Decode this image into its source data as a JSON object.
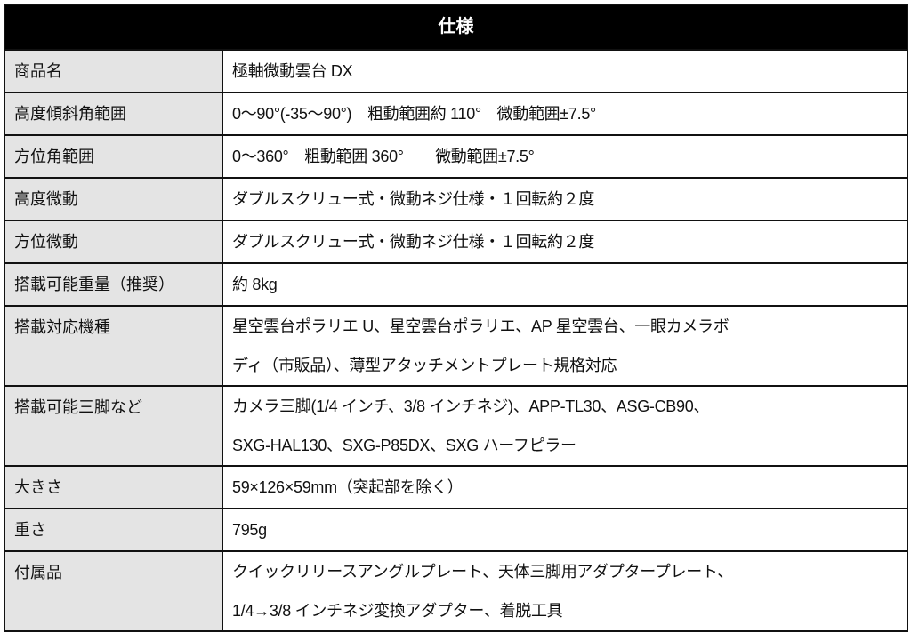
{
  "title": "仕様",
  "colors": {
    "header_bg": "#000000",
    "header_text": "#ffffff",
    "label_bg": "#e4e4e4"
  },
  "rows": [
    {
      "label": "商品名",
      "value": [
        "極軸微動雲台 DX"
      ]
    },
    {
      "label": "高度傾斜角範囲",
      "value": [
        "0～90°(-35～90°)　粗動範囲約 110°　微動範囲±7.5°"
      ]
    },
    {
      "label": "方位角範囲",
      "value": [
        "0～360°　粗動範囲 360°　　微動範囲±7.5°"
      ]
    },
    {
      "label": "高度微動",
      "value": [
        "ダブルスクリュー式・微動ネジ仕様・１回転約２度"
      ]
    },
    {
      "label": "方位微動",
      "value": [
        "ダブルスクリュー式・微動ネジ仕様・１回転約２度"
      ]
    },
    {
      "label": "搭載可能重量（推奨）",
      "value": [
        "約 8kg"
      ]
    },
    {
      "label": "搭載対応機種",
      "value": [
        "星空雲台ポラリエ U、星空雲台ポラリエ、AP 星空雲台、一眼カメラボ",
        "ディ（市販品）、薄型アタッチメントプレート規格対応"
      ]
    },
    {
      "label": "搭載可能三脚など",
      "value": [
        "カメラ三脚(1/4 インチ、3/8 インチネジ)、APP-TL30、ASG-CB90、",
        "SXG-HAL130、SXG-P85DX、SXG ハーフピラー"
      ]
    },
    {
      "label": "大きさ",
      "value": [
        "59×126×59mm（突起部を除く）"
      ]
    },
    {
      "label": "重さ",
      "value": [
        "795g"
      ]
    },
    {
      "label": "付属品",
      "value": [
        "クイックリリースアングルプレート、天体三脚用アダプタープレート、",
        "1/4→3/8 インチネジ変換アダプター、着脱工具"
      ]
    }
  ]
}
